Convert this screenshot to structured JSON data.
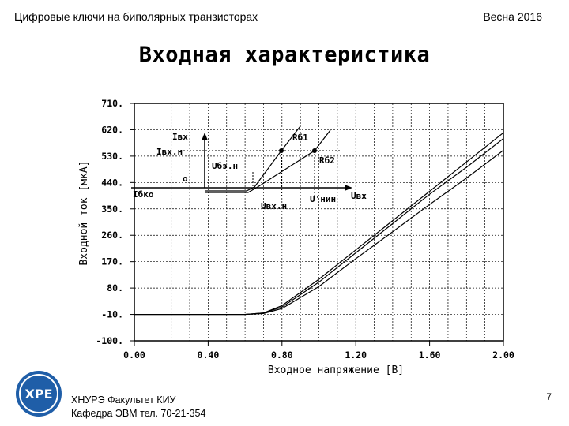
{
  "header": {
    "course": "Цифровые ключи на биполярных транзисторах",
    "term": "Весна 2016"
  },
  "slide_title": "Входная характеристика",
  "footer": {
    "line1": "ХНУРЭ Факультет КИУ",
    "line2": "Кафедра ЭВМ   тел. 70-21-354",
    "logo_text": "ХРЕ"
  },
  "page_number": "7",
  "chart_data": {
    "type": "line",
    "xlabel": "Входное напряжение [В]",
    "ylabel": "Входной ток [мкА]",
    "xlim": [
      0,
      2.0
    ],
    "ylim": [
      -100,
      710
    ],
    "x_ticks": [
      "0.00",
      "0.40",
      "0.80",
      "1.20",
      "1.60",
      "2.00"
    ],
    "y_ticks": [
      "710.",
      "620.",
      "530.",
      "440.",
      "350.",
      "260.",
      "170.",
      "80.",
      "-10.",
      "-100."
    ],
    "grid": true,
    "series": [
      {
        "x": [
          0,
          0.6,
          0.7,
          0.8,
          1.0,
          1.2,
          1.4,
          1.6,
          1.8,
          2.0
        ],
        "y": [
          -10,
          -10,
          -5,
          20,
          110,
          210,
          310,
          410,
          510,
          610
        ]
      },
      {
        "x": [
          0,
          0.6,
          0.7,
          0.8,
          1.0,
          1.2,
          1.4,
          1.6,
          1.8,
          2.0
        ],
        "y": [
          -10,
          -10,
          -5,
          15,
          100,
          200,
          300,
          400,
          492,
          590
        ]
      },
      {
        "x": [
          0,
          0.6,
          0.7,
          0.8,
          1.0,
          1.2,
          1.4,
          1.6,
          1.8,
          2.0
        ],
        "y": [
          -10,
          -10,
          -7,
          10,
          85,
          180,
          272,
          365,
          455,
          550
        ]
      }
    ],
    "inset": {
      "labels": [
        "Iвх",
        "Iвх.н",
        "Uбэ.н",
        "о",
        "Iбко",
        "Uвх.н",
        "U'нин",
        "Uвх",
        "Rб1",
        "Rб2"
      ]
    }
  }
}
